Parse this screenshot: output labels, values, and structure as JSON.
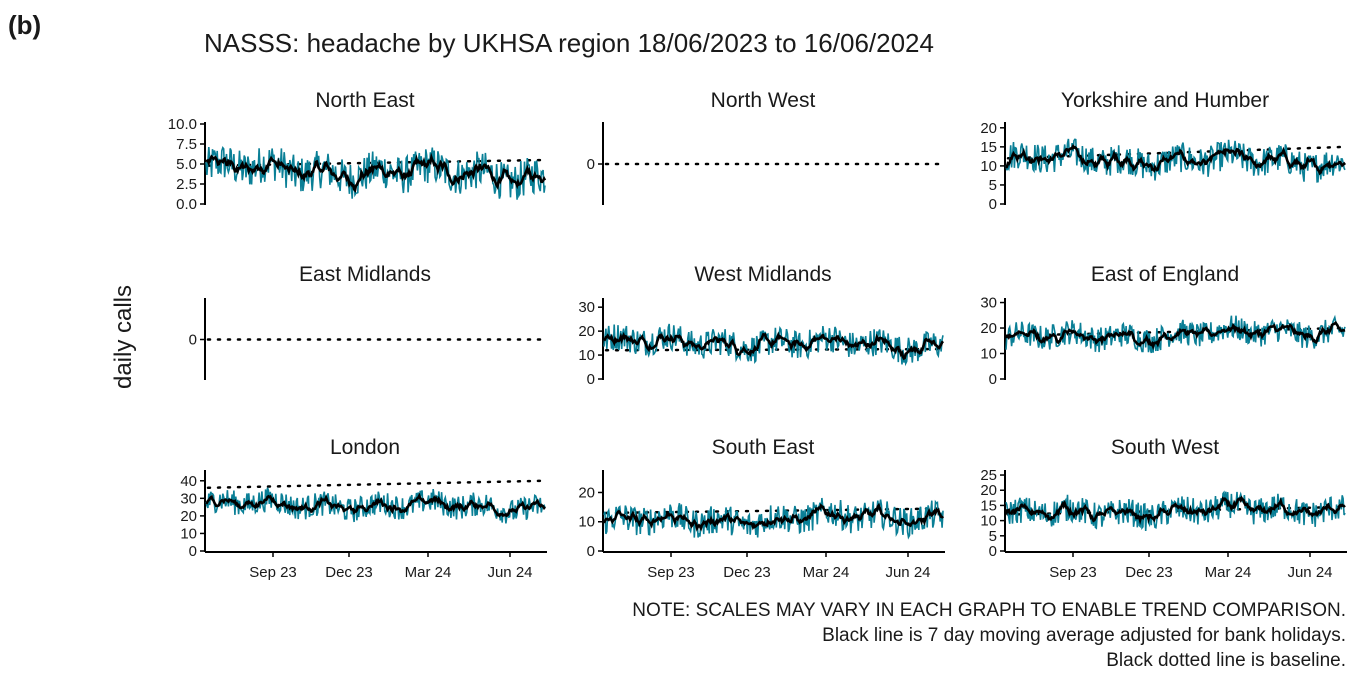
{
  "panel_tag": "(b)",
  "chart_data": {
    "type": "line",
    "title": "NASSS: headache by UKHSA region 18/06/2023 to 16/06/2024",
    "ylabel": "daily calls",
    "x_ticks": [
      "Sep 23",
      "Dec 23",
      "Mar 24",
      "Jun 24"
    ],
    "x_range": [
      "2023-06-18",
      "2024-06-16"
    ],
    "legend": "none",
    "grid": false,
    "colors": {
      "daily": "#0a7f96",
      "moving_average": "#000000",
      "baseline": "#000000"
    },
    "series_descriptions": {
      "daily": "daily calls",
      "moving_average": "7 day moving average adjusted for bank holidays",
      "baseline": "baseline"
    },
    "facets": [
      {
        "name": "North East",
        "ylim": [
          0,
          10
        ],
        "ticks": [
          "0.0",
          "2.5",
          "5.0",
          "7.5",
          "10.0"
        ],
        "daily_mean": 3.8,
        "daily_spread": 2.4,
        "avg_start": 4.5,
        "avg_end": 3.5,
        "baseline_start": 4.8,
        "baseline_end": 5.5
      },
      {
        "name": "North West",
        "ylim": [
          -1,
          1
        ],
        "ticks": [
          "0"
        ],
        "empty": true,
        "baseline_start": 0,
        "baseline_end": 0
      },
      {
        "name": "Yorkshire and Humber",
        "ylim": [
          0,
          21
        ],
        "ticks": [
          "0",
          "5",
          "10",
          "15",
          "20"
        ],
        "daily_mean": 11.5,
        "daily_spread": 4,
        "avg_start": 12,
        "avg_end": 11,
        "baseline_start": 12,
        "baseline_end": 15
      },
      {
        "name": "East Midlands",
        "ylim": [
          -1,
          1
        ],
        "ticks": [
          "0"
        ],
        "empty": true,
        "baseline_start": 0,
        "baseline_end": 0
      },
      {
        "name": "West Midlands",
        "ylim": [
          0,
          33
        ],
        "ticks": [
          "0",
          "10",
          "20",
          "30"
        ],
        "daily_mean": 16,
        "daily_spread": 6,
        "avg_start": 16,
        "avg_end": 14,
        "baseline_start": 12,
        "baseline_end": 12.5
      },
      {
        "name": "East of England",
        "ylim": [
          0,
          31
        ],
        "ticks": [
          "0",
          "10",
          "20",
          "30"
        ],
        "daily_mean": 18,
        "daily_spread": 5,
        "avg_start": 16,
        "avg_end": 19,
        "baseline_start": 17,
        "baseline_end": 20
      },
      {
        "name": "London",
        "ylim": [
          0,
          45
        ],
        "ticks": [
          "0",
          "10",
          "20",
          "30",
          "40"
        ],
        "daily_mean": 27,
        "daily_spread": 7,
        "avg_start": 27,
        "avg_end": 25,
        "baseline_start": 36,
        "baseline_end": 40
      },
      {
        "name": "South East",
        "ylim": [
          0,
          27
        ],
        "ticks": [
          "0",
          "10",
          "20"
        ],
        "daily_mean": 13,
        "daily_spread": 5,
        "avg_start": 10,
        "avg_end": 12,
        "baseline_start": 13,
        "baseline_end": 14.5
      },
      {
        "name": "South West",
        "ylim": [
          0,
          26
        ],
        "ticks": [
          "0",
          "5",
          "10",
          "15",
          "20",
          "25"
        ],
        "daily_mean": 14,
        "daily_spread": 4.5,
        "avg_start": 12,
        "avg_end": 14,
        "baseline_start": 12,
        "baseline_end": 14.5
      }
    ]
  },
  "notes": [
    "NOTE: SCALES MAY VARY IN EACH GRAPH TO ENABLE TREND COMPARISON.",
    "Black line is 7 day moving average adjusted for bank holidays.",
    "Black dotted line is baseline."
  ]
}
